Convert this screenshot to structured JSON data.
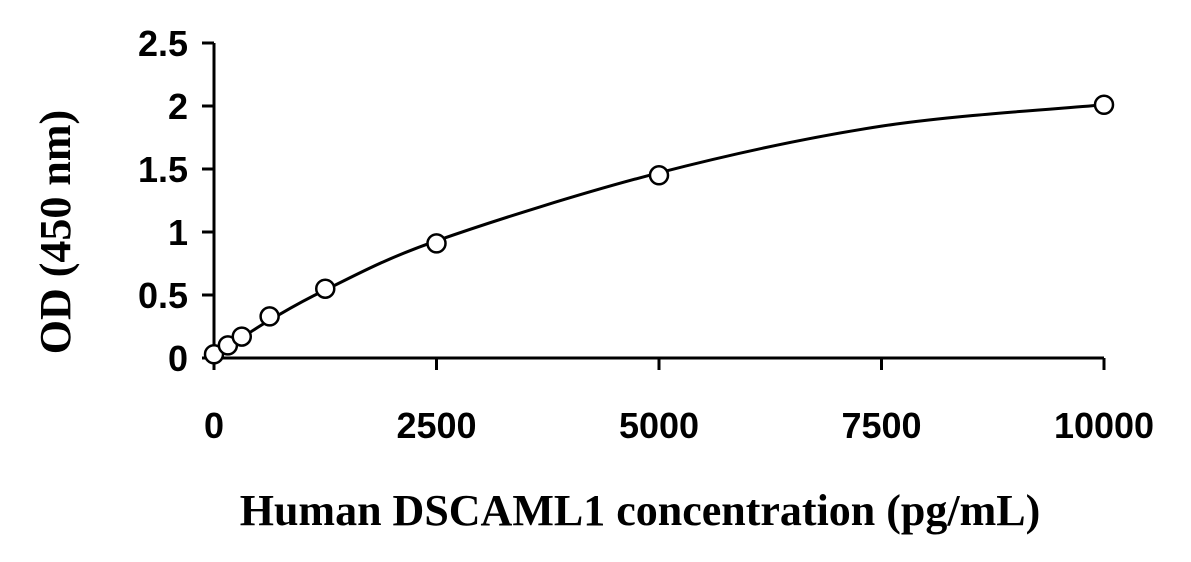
{
  "chart_data": {
    "type": "scatter",
    "title": "",
    "xlabel": "Human DSCAML1 concentration (pg/mL)",
    "ylabel": "OD (450 nm)",
    "xlim": [
      0,
      10000
    ],
    "ylim": [
      0,
      2.5
    ],
    "x_ticks": [
      "0",
      "2500",
      "5000",
      "7500",
      "10000"
    ],
    "y_ticks": [
      "0",
      "0.5",
      "1",
      "1.5",
      "2",
      "2.5"
    ],
    "grid": false,
    "legend": "none",
    "series": [
      {
        "marker": "open-circle",
        "x": [
          0,
          156,
          312,
          625,
          1250,
          2500,
          5000,
          10000
        ],
        "y": [
          0.03,
          0.1,
          0.17,
          0.33,
          0.55,
          0.91,
          1.45,
          2.01
        ]
      }
    ],
    "fit_curve": {
      "type": "smooth",
      "x": [
        0,
        156,
        312,
        625,
        1250,
        2500,
        5000,
        7500,
        10000
      ],
      "y": [
        0.03,
        0.09,
        0.16,
        0.3,
        0.54,
        0.93,
        1.47,
        1.84,
        2.01
      ]
    },
    "colors": {
      "axis": "#000000",
      "marker_stroke": "#000000",
      "marker_fill": "#ffffff",
      "curve": "#000000"
    }
  }
}
